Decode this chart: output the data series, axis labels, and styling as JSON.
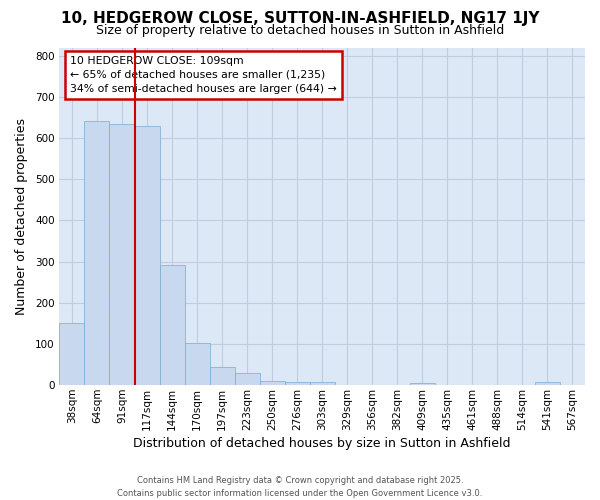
{
  "title": "10, HEDGEROW CLOSE, SUTTON-IN-ASHFIELD, NG17 1JY",
  "subtitle": "Size of property relative to detached houses in Sutton in Ashfield",
  "xlabel": "Distribution of detached houses by size in Sutton in Ashfield",
  "ylabel": "Number of detached properties",
  "categories": [
    "38sqm",
    "64sqm",
    "91sqm",
    "117sqm",
    "144sqm",
    "170sqm",
    "197sqm",
    "223sqm",
    "250sqm",
    "276sqm",
    "303sqm",
    "329sqm",
    "356sqm",
    "382sqm",
    "409sqm",
    "435sqm",
    "461sqm",
    "488sqm",
    "514sqm",
    "541sqm",
    "567sqm"
  ],
  "values": [
    150,
    641,
    635,
    630,
    293,
    103,
    44,
    30,
    11,
    7,
    7,
    0,
    0,
    0,
    5,
    0,
    0,
    0,
    0,
    7,
    0
  ],
  "bar_color": "#c8d8ee",
  "bar_edge_color": "#7aaad0",
  "bar_edge_width": 0.5,
  "red_line_color": "#cc0000",
  "red_line_index": 3,
  "annotation_line1": "10 HEDGEROW CLOSE: 109sqm",
  "annotation_line2": "← 65% of detached houses are smaller (1,235)",
  "annotation_line3": "34% of semi-detached houses are larger (644) →",
  "ylim": [
    0,
    820
  ],
  "yticks": [
    0,
    100,
    200,
    300,
    400,
    500,
    600,
    700,
    800
  ],
  "grid_color": "#c0cce0",
  "plot_bg_color": "#dce8f5",
  "fig_bg_color": "#ffffff",
  "title_fontsize": 11,
  "subtitle_fontsize": 9,
  "axis_label_fontsize": 9,
  "tick_fontsize": 7.5,
  "footer_line1": "Contains HM Land Registry data © Crown copyright and database right 2025.",
  "footer_line2": "Contains public sector information licensed under the Open Government Licence v3.0."
}
